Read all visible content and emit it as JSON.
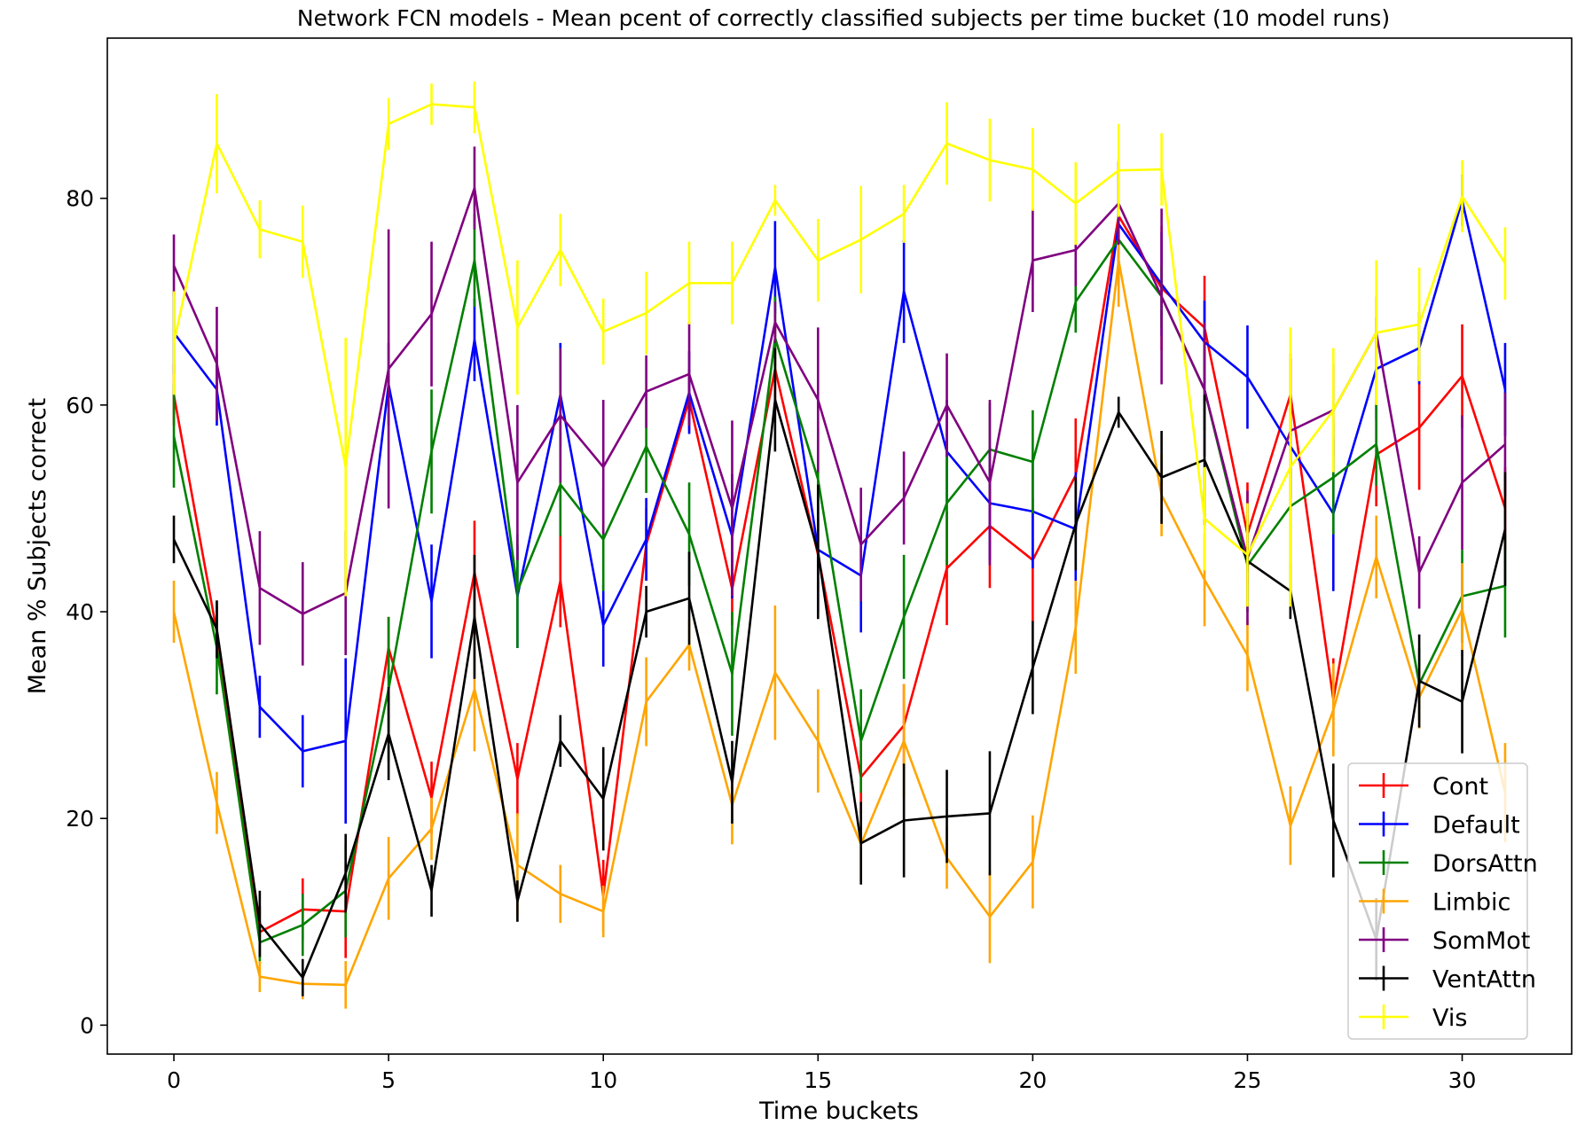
{
  "chart_data": {
    "type": "line",
    "title": "Network FCN models - Mean pcent of correctly classified subjects per time bucket (10 model runs)",
    "xlabel": "Time buckets",
    "ylabel": "Mean % Subjects correct",
    "xlim": [
      -1.55,
      32.55
    ],
    "ylim": [
      -2.8,
      95.5
    ],
    "xticks": [
      0,
      5,
      10,
      15,
      20,
      25,
      30
    ],
    "yticks": [
      0,
      20,
      40,
      60,
      80
    ],
    "grid": false,
    "legend_position": "lower-right",
    "error_bars": true,
    "x": [
      0,
      1,
      2,
      3,
      4,
      5,
      6,
      7,
      8,
      9,
      10,
      11,
      12,
      13,
      14,
      15,
      16,
      17,
      18,
      19,
      20,
      21,
      22,
      23,
      24,
      25,
      26,
      27,
      28,
      29,
      30,
      31
    ],
    "series": [
      {
        "name": "Cont",
        "color": "#ff0000",
        "values": [
          61,
          38,
          9,
          11.2,
          11,
          36.5,
          22,
          43.8,
          23.8,
          43,
          12.5,
          46.5,
          60.5,
          42.2,
          63.5,
          45.5,
          24,
          29,
          44.2,
          48.3,
          45,
          53.2,
          78.3,
          71.3,
          67.5,
          47.5,
          61,
          31.5,
          55.2,
          57.8,
          62.8,
          50
        ],
        "errors": [
          3,
          2.5,
          2.5,
          3,
          4.5,
          3,
          3.5,
          5,
          3.5,
          4.5,
          3.5,
          3.5,
          3,
          3.5,
          4,
          3.5,
          3.5,
          4,
          5.5,
          6,
          6,
          5.5,
          5.5,
          6,
          5,
          5,
          4,
          4,
          5,
          6,
          5,
          4
        ]
      },
      {
        "name": "Default",
        "color": "#0000ff",
        "values": [
          67,
          61.5,
          30.8,
          26.5,
          27.5,
          62,
          41,
          66.3,
          41.5,
          61,
          38.7,
          47,
          61.2,
          47.3,
          73.3,
          46,
          43.5,
          71,
          55.5,
          50.5,
          49.7,
          48,
          77.5,
          71.7,
          66.1,
          62.7,
          56,
          49.5,
          63.5,
          65.5,
          79.8,
          61.5
        ],
        "errors": [
          4,
          3.5,
          3,
          3.5,
          8,
          4,
          5.5,
          4,
          5,
          5,
          4,
          4,
          4,
          6,
          4.5,
          6,
          5.5,
          5,
          5,
          5.5,
          5.5,
          5.5,
          6,
          5,
          4,
          5,
          5,
          7.5,
          5,
          3.5,
          2.5,
          4.5
        ]
      },
      {
        "name": "DorsAttn",
        "color": "#008000",
        "values": [
          57,
          36.5,
          8,
          9.7,
          13,
          32.5,
          55.5,
          74,
          42,
          52.3,
          47,
          56,
          47.5,
          34,
          66.5,
          52.8,
          27.5,
          39.5,
          50.5,
          55.7,
          54.5,
          70,
          76,
          70.5,
          61.5,
          44.5,
          50.2,
          53,
          56.2,
          33,
          41.5,
          42.5
        ],
        "errors": [
          5,
          4.5,
          2,
          3,
          4.5,
          7,
          6,
          4.5,
          5.5,
          5,
          5,
          4.5,
          5,
          6,
          4,
          5,
          5,
          6,
          6,
          4.5,
          5,
          3,
          2.5,
          3,
          4,
          4.5,
          5.5,
          5.5,
          4,
          3.5,
          4.5,
          5
        ]
      },
      {
        "name": "Limbic",
        "color": "#ffa500",
        "values": [
          40,
          21.5,
          4.7,
          4,
          3.9,
          14.2,
          19,
          32.5,
          15.5,
          12.7,
          11,
          31.3,
          36.8,
          21.3,
          34.1,
          27.5,
          17.5,
          27.5,
          16.2,
          10.5,
          15.8,
          38.5,
          74,
          51.3,
          43.1,
          35.8,
          19.3,
          30.5,
          45.3,
          31.7,
          40.2,
          22.5
        ],
        "errors": [
          3,
          3,
          1.5,
          1.5,
          2.3,
          4,
          3,
          6,
          5,
          2.8,
          2.5,
          4.3,
          2.5,
          3.8,
          6.5,
          5,
          3.5,
          5.5,
          3,
          4.5,
          4.5,
          4.5,
          4.5,
          4,
          4.5,
          3.5,
          3.8,
          4.5,
          4,
          3,
          4.5,
          4.8
        ]
      },
      {
        "name": "SomMot",
        "color": "#800080",
        "values": [
          73.5,
          64,
          42.3,
          39.8,
          41.8,
          63.5,
          68.8,
          81,
          52.5,
          59,
          54,
          61.3,
          63,
          50,
          68,
          60.5,
          46.5,
          51,
          60,
          52.5,
          74,
          75,
          79.5,
          70.5,
          61.5,
          45.2,
          57.5,
          59.5,
          67,
          43.8,
          52.5,
          56.2
        ],
        "errors": [
          3,
          5.5,
          5.5,
          5,
          6,
          13.5,
          7,
          4,
          7.5,
          6.5,
          6.5,
          3.5,
          5,
          8.5,
          2,
          7,
          5.5,
          4.5,
          5,
          8,
          5,
          3.5,
          4,
          8.5,
          6.5,
          6.5,
          7,
          4.5,
          3.5,
          3.5,
          6.5,
          5
        ]
      },
      {
        "name": "VentAttn",
        "color": "#000000",
        "values": [
          47,
          38.3,
          9.8,
          4.6,
          14.7,
          28.2,
          13,
          39.5,
          12,
          27.5,
          21.9,
          40,
          41.3,
          23.5,
          60.5,
          45.8,
          17.6,
          19.8,
          20.2,
          20.5,
          34.6,
          48.5,
          59.3,
          53,
          54.7,
          44.9,
          42,
          19.8,
          8.3,
          33.3,
          31.3,
          48
        ],
        "errors": [
          2.3,
          2.8,
          3.2,
          1.8,
          3.8,
          4.5,
          2.5,
          6,
          2,
          2.5,
          5,
          2.5,
          4.5,
          4,
          5,
          6.5,
          4,
          5.5,
          4.5,
          6,
          4.5,
          4.5,
          1.5,
          4.5,
          6.3,
          1,
          2.7,
          5.5,
          4,
          4.5,
          5,
          5.5
        ]
      },
      {
        "name": "Vis",
        "color": "#ffff00",
        "values": [
          66,
          85.3,
          77,
          75.8,
          54,
          87.2,
          89.1,
          88.8,
          67.5,
          75,
          67.1,
          68.9,
          71.8,
          71.8,
          79.8,
          74,
          76,
          78.5,
          85.3,
          83.7,
          82.8,
          79.5,
          82.7,
          82.8,
          49,
          45.5,
          54,
          59.5,
          67,
          67.8,
          80.2,
          73.7
        ],
        "errors": [
          5,
          4.8,
          2.8,
          3.5,
          12.5,
          2.5,
          2,
          2.5,
          6.5,
          3.5,
          3.2,
          4,
          4,
          4,
          1.5,
          4,
          5.2,
          2.8,
          4,
          4,
          4,
          4,
          4.5,
          3.5,
          5,
          5,
          13.5,
          6,
          7,
          5.5,
          3.5,
          3.5
        ]
      }
    ]
  }
}
